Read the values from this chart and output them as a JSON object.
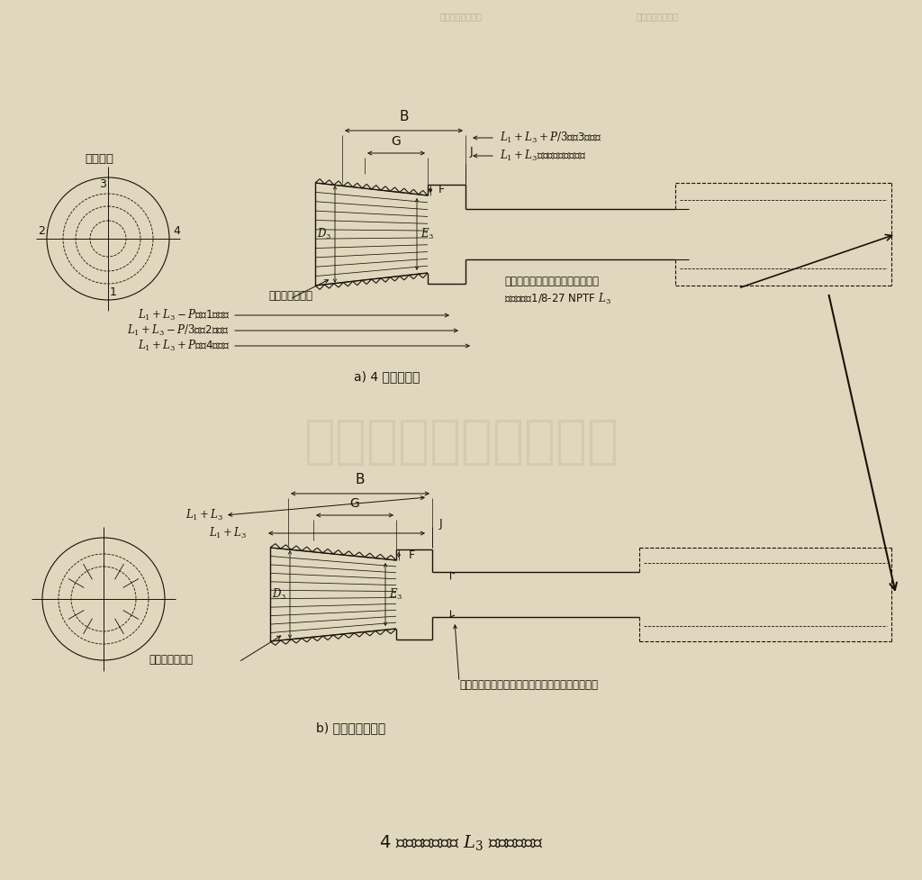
{
  "bg_color": "#dfd8be",
  "line_color": "#1a1208",
  "title": "4 台阶型或基本型 $L_3$ 圆锥螺纹塞规",
  "label_a": "a) 4 台阶型设计",
  "label_b": "b) 基本台阶型设计",
  "step_label": "台阶标记",
  "remove_incomplete": "去除不完整螺纹",
  "dim_L1L3_P_step1": "$L_1+L_3-P$（第1台阶）",
  "dim_L1L3_P3_step2": "$L_1+L_3-P/3$（第2台阶）",
  "dim_L1L3_P_step4": "$L_1+L_3+P$（第4台阶）",
  "dim_B": "B",
  "dim_G": "G",
  "dim_J": "J",
  "dim_F": "F",
  "dim_D3": "$D_3$",
  "dim_E3": "$E_3$",
  "dim_L1L3_P3_top": "$L_1+L_3+P/3$（第3台阶）",
  "dim_L1L3_ref": "$L_1+L_3$（参考尺寸无台阶）",
  "gauge_mark_text1": "量规标记刻在量规的轴上和手柄上",
  "gauge_mark_text2": "量规标记：1/8-27 NPTF $L_3$",
  "dim_L1L3_bottom": "$L_1+L_3$",
  "taper_text": "有锥度或为圆柱的带有退刀槽（两种设计都适用）",
  "watermark": "上海良机工具有限公司",
  "top_header": "基本螺距规格螺距",
  "top_header2": "基本螺距整套信号"
}
